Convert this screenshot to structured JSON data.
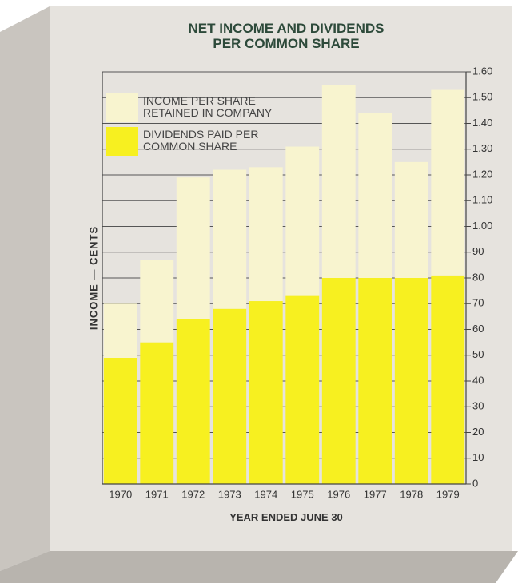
{
  "chart_data": {
    "type": "stacked_bar",
    "title": "NET INCOME AND DIVIDENDS\nPER COMMON SHARE",
    "x_label": "YEAR ENDED JUNE 30",
    "y_label": "INCOME — CENTS",
    "categories": [
      "1970",
      "1971",
      "1972",
      "1973",
      "1974",
      "1975",
      "1976",
      "1977",
      "1978",
      "1979"
    ],
    "series": [
      {
        "name": "INCOME PER SHARE\nRETAINED IN COMPANY",
        "color": "#f8f4cf",
        "values": [
          21,
          32,
          55,
          54,
          52,
          58,
          75,
          64,
          45,
          72
        ]
      },
      {
        "name": "DIVIDENDS PAID PER\nCOMMON SHARE",
        "color": "#f7f020",
        "values": [
          49,
          55,
          64,
          68,
          71,
          73,
          80,
          80,
          80,
          81
        ]
      }
    ],
    "ylim": [
      0,
      160
    ],
    "yticks": [
      0,
      10,
      20,
      30,
      40,
      50,
      60,
      70,
      80,
      90,
      {
        "value": 100,
        "label": "1.00"
      },
      {
        "value": 110,
        "label": "1.10"
      },
      {
        "value": 120,
        "label": "1.20"
      },
      {
        "value": 130,
        "label": "1.30"
      },
      {
        "value": 140,
        "label": "1.40"
      },
      {
        "value": 150,
        "label": "1.50"
      },
      {
        "value": 160,
        "label": "1.60"
      }
    ],
    "grid": true
  }
}
